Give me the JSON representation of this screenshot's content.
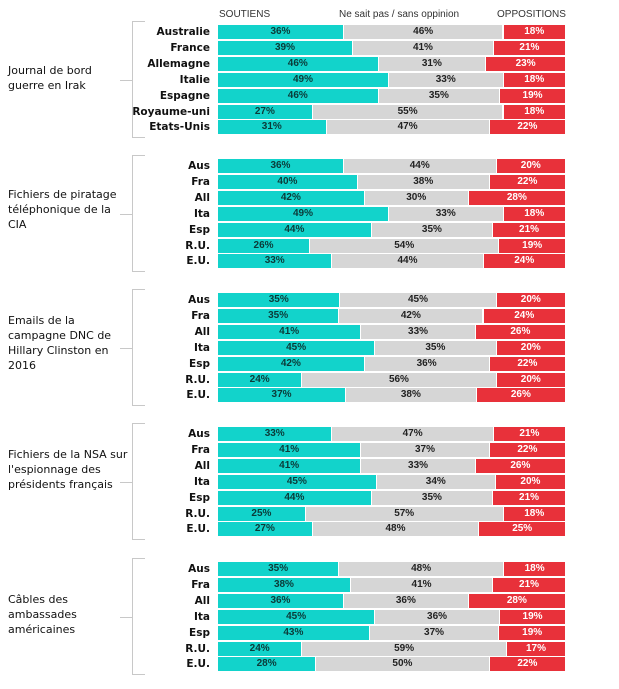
{
  "chart_data": {
    "type": "bar",
    "orientation": "horizontal",
    "stacked": true,
    "percent": true,
    "legend": {
      "position": "top",
      "entries": [
        "SOUTIENS",
        "Ne sait pas / sans oppinion",
        "OPPOSITIONS"
      ]
    },
    "colors": {
      "soutiens": "#12d3cb",
      "neutre": "#d6d6d6",
      "oppositions": "#e8313a"
    },
    "groups": [
      {
        "title": "Journal de bord guerre en Irak",
        "rows": [
          {
            "label": "Australie",
            "soutiens": 36,
            "neutre": 46,
            "oppositions": 18
          },
          {
            "label": "France",
            "soutiens": 39,
            "neutre": 41,
            "oppositions": 21
          },
          {
            "label": "Allemagne",
            "soutiens": 46,
            "neutre": 31,
            "oppositions": 23
          },
          {
            "label": "Italie",
            "soutiens": 49,
            "neutre": 33,
            "oppositions": 18
          },
          {
            "label": "Espagne",
            "soutiens": 46,
            "neutre": 35,
            "oppositions": 19
          },
          {
            "label": "Royaume-uni",
            "soutiens": 27,
            "neutre": 55,
            "oppositions": 18
          },
          {
            "label": "Etats-Unis",
            "soutiens": 31,
            "neutre": 47,
            "oppositions": 22
          }
        ]
      },
      {
        "title": "Fichiers de piratage téléphonique de la CIA",
        "rows": [
          {
            "label": "Aus",
            "soutiens": 36,
            "neutre": 44,
            "oppositions": 20
          },
          {
            "label": "Fra",
            "soutiens": 40,
            "neutre": 38,
            "oppositions": 22
          },
          {
            "label": "All",
            "soutiens": 42,
            "neutre": 30,
            "oppositions": 28
          },
          {
            "label": "Ita",
            "soutiens": 49,
            "neutre": 33,
            "oppositions": 18
          },
          {
            "label": "Esp",
            "soutiens": 44,
            "neutre": 35,
            "oppositions": 21
          },
          {
            "label": "R.U.",
            "soutiens": 26,
            "neutre": 54,
            "oppositions": 19
          },
          {
            "label": "E.U.",
            "soutiens": 33,
            "neutre": 44,
            "oppositions": 24
          }
        ]
      },
      {
        "title": "Emails de la campagne DNC de Hillary Clinston en 2016",
        "rows": [
          {
            "label": "Aus",
            "soutiens": 35,
            "neutre": 45,
            "oppositions": 20
          },
          {
            "label": "Fra",
            "soutiens": 35,
            "neutre": 42,
            "oppositions": 24
          },
          {
            "label": "All",
            "soutiens": 41,
            "neutre": 33,
            "oppositions": 26
          },
          {
            "label": "Ita",
            "soutiens": 45,
            "neutre": 35,
            "oppositions": 20
          },
          {
            "label": "Esp",
            "soutiens": 42,
            "neutre": 36,
            "oppositions": 22
          },
          {
            "label": "R.U.",
            "soutiens": 24,
            "neutre": 56,
            "oppositions": 20
          },
          {
            "label": "E.U.",
            "soutiens": 37,
            "neutre": 38,
            "oppositions": 26
          }
        ]
      },
      {
        "title": "Fichiers de la NSA sur l'espionnage des présidents français",
        "rows": [
          {
            "label": "Aus",
            "soutiens": 33,
            "neutre": 47,
            "oppositions": 21
          },
          {
            "label": "Fra",
            "soutiens": 41,
            "neutre": 37,
            "oppositions": 22
          },
          {
            "label": "All",
            "soutiens": 41,
            "neutre": 33,
            "oppositions": 26
          },
          {
            "label": "Ita",
            "soutiens": 45,
            "neutre": 34,
            "oppositions": 20
          },
          {
            "label": "Esp",
            "soutiens": 44,
            "neutre": 35,
            "oppositions": 21
          },
          {
            "label": "R.U.",
            "soutiens": 25,
            "neutre": 57,
            "oppositions": 18
          },
          {
            "label": "E.U.",
            "soutiens": 27,
            "neutre": 48,
            "oppositions": 25
          }
        ]
      },
      {
        "title": "Câbles des ambassades américaines",
        "rows": [
          {
            "label": "Aus",
            "soutiens": 35,
            "neutre": 48,
            "oppositions": 18
          },
          {
            "label": "Fra",
            "soutiens": 38,
            "neutre": 41,
            "oppositions": 21
          },
          {
            "label": "All",
            "soutiens": 36,
            "neutre": 36,
            "oppositions": 28
          },
          {
            "label": "Ita",
            "soutiens": 45,
            "neutre": 36,
            "oppositions": 19
          },
          {
            "label": "Esp",
            "soutiens": 43,
            "neutre": 37,
            "oppositions": 19
          },
          {
            "label": "R.U.",
            "soutiens": 24,
            "neutre": 59,
            "oppositions": 17
          },
          {
            "label": "E.U.",
            "soutiens": 28,
            "neutre": 50,
            "oppositions": 22
          }
        ]
      }
    ]
  }
}
